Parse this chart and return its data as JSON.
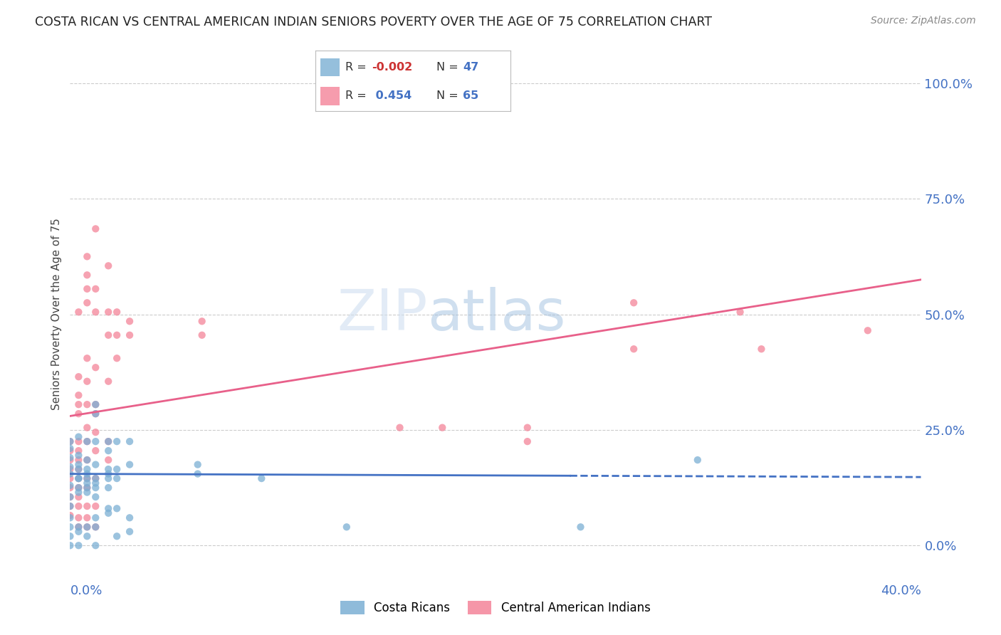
{
  "title": "COSTA RICAN VS CENTRAL AMERICAN INDIAN SENIORS POVERTY OVER THE AGE OF 75 CORRELATION CHART",
  "source": "Source: ZipAtlas.com",
  "ylabel": "Seniors Poverty Over the Age of 75",
  "ytick_values": [
    0.0,
    0.25,
    0.5,
    0.75,
    1.0
  ],
  "xlim": [
    0.0,
    0.4
  ],
  "ylim": [
    -0.07,
    1.07
  ],
  "costa_rican_color": "#7bafd4",
  "central_american_color": "#f48499",
  "costa_rican_line_color": "#4472c4",
  "central_american_line_color": "#e8608a",
  "background_color": "#ffffff",
  "grid_color": "#cccccc",
  "axis_label_color": "#4472c4",
  "scatter_alpha": 0.75,
  "scatter_size": 55,
  "costa_rican_scatter": [
    [
      0.0,
      0.155
    ],
    [
      0.0,
      0.13
    ],
    [
      0.0,
      0.17
    ],
    [
      0.0,
      0.19
    ],
    [
      0.0,
      0.21
    ],
    [
      0.0,
      0.105
    ],
    [
      0.0,
      0.085
    ],
    [
      0.0,
      0.225
    ],
    [
      0.0,
      0.04
    ],
    [
      0.0,
      0.06
    ],
    [
      0.0,
      0.02
    ],
    [
      0.0,
      0.0
    ],
    [
      0.004,
      0.145
    ],
    [
      0.004,
      0.175
    ],
    [
      0.004,
      0.195
    ],
    [
      0.004,
      0.115
    ],
    [
      0.004,
      0.165
    ],
    [
      0.004,
      0.125
    ],
    [
      0.004,
      0.145
    ],
    [
      0.004,
      0.235
    ],
    [
      0.004,
      0.04
    ],
    [
      0.004,
      0.03
    ],
    [
      0.004,
      0.0
    ],
    [
      0.008,
      0.185
    ],
    [
      0.008,
      0.155
    ],
    [
      0.008,
      0.135
    ],
    [
      0.008,
      0.225
    ],
    [
      0.008,
      0.125
    ],
    [
      0.008,
      0.115
    ],
    [
      0.008,
      0.145
    ],
    [
      0.008,
      0.165
    ],
    [
      0.008,
      0.04
    ],
    [
      0.008,
      0.02
    ],
    [
      0.012,
      0.175
    ],
    [
      0.012,
      0.145
    ],
    [
      0.012,
      0.285
    ],
    [
      0.012,
      0.305
    ],
    [
      0.012,
      0.225
    ],
    [
      0.012,
      0.125
    ],
    [
      0.012,
      0.135
    ],
    [
      0.012,
      0.105
    ],
    [
      0.012,
      0.04
    ],
    [
      0.012,
      0.06
    ],
    [
      0.012,
      0.0
    ],
    [
      0.018,
      0.165
    ],
    [
      0.018,
      0.155
    ],
    [
      0.018,
      0.125
    ],
    [
      0.018,
      0.225
    ],
    [
      0.018,
      0.205
    ],
    [
      0.018,
      0.145
    ],
    [
      0.018,
      0.08
    ],
    [
      0.018,
      0.07
    ],
    [
      0.022,
      0.165
    ],
    [
      0.022,
      0.145
    ],
    [
      0.022,
      0.225
    ],
    [
      0.022,
      0.08
    ],
    [
      0.022,
      0.02
    ],
    [
      0.028,
      0.225
    ],
    [
      0.028,
      0.175
    ],
    [
      0.028,
      0.06
    ],
    [
      0.028,
      0.03
    ],
    [
      0.06,
      0.175
    ],
    [
      0.06,
      0.155
    ],
    [
      0.09,
      0.145
    ],
    [
      0.13,
      0.04
    ],
    [
      0.24,
      0.04
    ],
    [
      0.295,
      0.185
    ]
  ],
  "central_american_scatter": [
    [
      0.0,
      0.145
    ],
    [
      0.0,
      0.185
    ],
    [
      0.0,
      0.165
    ],
    [
      0.0,
      0.225
    ],
    [
      0.0,
      0.205
    ],
    [
      0.0,
      0.105
    ],
    [
      0.0,
      0.125
    ],
    [
      0.0,
      0.085
    ],
    [
      0.0,
      0.065
    ],
    [
      0.004,
      0.505
    ],
    [
      0.004,
      0.285
    ],
    [
      0.004,
      0.325
    ],
    [
      0.004,
      0.365
    ],
    [
      0.004,
      0.305
    ],
    [
      0.004,
      0.225
    ],
    [
      0.004,
      0.185
    ],
    [
      0.004,
      0.205
    ],
    [
      0.004,
      0.165
    ],
    [
      0.004,
      0.145
    ],
    [
      0.004,
      0.125
    ],
    [
      0.004,
      0.105
    ],
    [
      0.004,
      0.085
    ],
    [
      0.004,
      0.04
    ],
    [
      0.004,
      0.06
    ],
    [
      0.008,
      0.625
    ],
    [
      0.008,
      0.525
    ],
    [
      0.008,
      0.585
    ],
    [
      0.008,
      0.555
    ],
    [
      0.008,
      0.405
    ],
    [
      0.008,
      0.355
    ],
    [
      0.008,
      0.305
    ],
    [
      0.008,
      0.255
    ],
    [
      0.008,
      0.225
    ],
    [
      0.008,
      0.185
    ],
    [
      0.008,
      0.145
    ],
    [
      0.008,
      0.125
    ],
    [
      0.008,
      0.085
    ],
    [
      0.008,
      0.04
    ],
    [
      0.008,
      0.06
    ],
    [
      0.012,
      0.685
    ],
    [
      0.012,
      0.555
    ],
    [
      0.012,
      0.505
    ],
    [
      0.012,
      0.385
    ],
    [
      0.012,
      0.305
    ],
    [
      0.012,
      0.285
    ],
    [
      0.012,
      0.245
    ],
    [
      0.012,
      0.205
    ],
    [
      0.012,
      0.145
    ],
    [
      0.012,
      0.085
    ],
    [
      0.012,
      0.04
    ],
    [
      0.018,
      0.605
    ],
    [
      0.018,
      0.505
    ],
    [
      0.018,
      0.455
    ],
    [
      0.018,
      0.355
    ],
    [
      0.018,
      0.225
    ],
    [
      0.018,
      0.185
    ],
    [
      0.022,
      0.505
    ],
    [
      0.022,
      0.455
    ],
    [
      0.022,
      0.405
    ],
    [
      0.028,
      0.485
    ],
    [
      0.028,
      0.455
    ],
    [
      0.062,
      0.485
    ],
    [
      0.062,
      0.455
    ],
    [
      0.155,
      0.255
    ],
    [
      0.175,
      0.255
    ],
    [
      0.215,
      0.255
    ],
    [
      0.215,
      0.225
    ],
    [
      0.265,
      0.525
    ],
    [
      0.265,
      0.425
    ],
    [
      0.315,
      0.505
    ],
    [
      0.325,
      0.425
    ],
    [
      0.375,
      0.465
    ]
  ],
  "cr_trend": [
    0.0,
    0.4,
    0.155,
    0.148
  ],
  "ca_trend": [
    0.0,
    0.4,
    0.28,
    0.575
  ]
}
